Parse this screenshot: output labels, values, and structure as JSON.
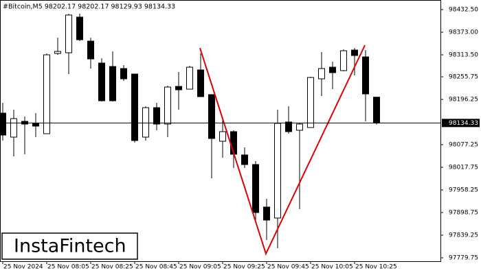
{
  "chart_data": {
    "type": "candlestick",
    "title": "#Bitcoin,M5  98202.17 98202.17 98129.93 98134.33",
    "logo": "InstaFintech",
    "categories": [
      "25 Nov 2024",
      null,
      null,
      null,
      "25 Nov 08:05",
      null,
      null,
      null,
      "25 Nov 08:25",
      null,
      null,
      null,
      "25 Nov 08:45",
      null,
      null,
      null,
      "25 Nov 09:05",
      null,
      null,
      null,
      "25 Nov 09:25",
      null,
      null,
      null,
      "25 Nov 09:45",
      null,
      null,
      null,
      "25 Nov 10:05",
      null,
      null,
      null,
      "25 Nov 10:25",
      null,
      null
    ],
    "open": [
      98160.2,
      98097.1,
      98138.6,
      98133.2,
      98106.1,
      98317.1,
      98318.9,
      98412.7,
      98349.6,
      98291.9,
      98282.8,
      98277.4,
      98263.0,
      98097.1,
      98174.6,
      98131.4,
      98230.5,
      98223.3,
      98273.8,
      98208.9,
      98086.3,
      98111.5,
      98050.2,
      98025.0,
      97913.2,
      97884.3,
      98136.8,
      98115.1,
      98122.3,
      98250.4,
      98281.0,
      98272.0,
      98326.1,
      98308.1,
      98202.17
    ],
    "high": [
      98187.3,
      98169.2,
      98151.2,
      98160.2,
      98317.1,
      98358.6,
      98421.7,
      98421.7,
      98358.6,
      98304.5,
      98322.5,
      98286.4,
      98263.0,
      98178.2,
      98187.3,
      98232.3,
      98268.4,
      98284.6,
      98317.1,
      98208.9,
      98142.2,
      98115.1,
      98070.1,
      98034.0,
      97934.8,
      98169.2,
      98178.2,
      98133.2,
      98255.8,
      98320.7,
      98295.5,
      98327.9,
      98331.5,
      98326.1,
      98202.17
    ],
    "low": [
      98088.1,
      98046.6,
      98052.0,
      98097.1,
      98106.1,
      98313.5,
      98263.0,
      98349.6,
      98277.4,
      98190.9,
      98190.9,
      98245.0,
      98082.7,
      98088.1,
      98115.1,
      98097.1,
      98169.2,
      98223.3,
      98203.5,
      97988.9,
      98043.0,
      98016.0,
      98016.0,
      97871.7,
      97826.6,
      97805.0,
      98106.1,
      97907.8,
      98122.3,
      98205.3,
      98223.3,
      98270.2,
      98259.4,
      98138.6,
      98129.93
    ],
    "close": [
      98102.5,
      98145.8,
      98131.4,
      98126.0,
      98313.5,
      98322.5,
      98418.1,
      98353.2,
      98302.7,
      98192.7,
      98192.7,
      98250.4,
      98088.1,
      98174.6,
      98131.4,
      98228.7,
      98221.5,
      98281.0,
      98203.5,
      98093.5,
      98111.5,
      98052.0,
      98025.0,
      97898.7,
      97878.9,
      98133.2,
      98111.5,
      98131.4,
      98254.0,
      98277.4,
      98266.6,
      98324.3,
      98311.7,
      98210.7,
      98134.33
    ],
    "current_price": 98134.33,
    "up_color": "#ffffff",
    "down_color": "#000000",
    "ylim": [
      97770.7,
      98457.7
    ],
    "yticks": [
      {
        "value": 98432.5,
        "label": "98432.50"
      },
      {
        "value": 98373,
        "label": "98373.00"
      },
      {
        "value": 98313.5,
        "label": "98313.50"
      },
      {
        "value": 98255.75,
        "label": "98255.75"
      },
      {
        "value": 98196.25,
        "label": "98196.25"
      },
      {
        "value": 98077.25,
        "label": "98077.25"
      },
      {
        "value": 98017.75,
        "label": "98017.75"
      },
      {
        "value": 97958.25,
        "label": "97958.25"
      },
      {
        "value": 97898.75,
        "label": "97898.75"
      },
      {
        "value": 97839.25,
        "label": "97839.25"
      },
      {
        "value": 97779.75,
        "label": "97779.75"
      }
    ]
  }
}
